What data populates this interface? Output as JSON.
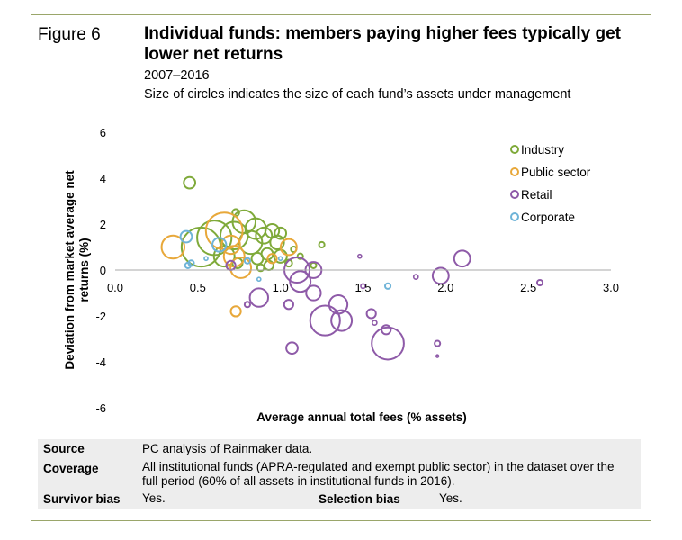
{
  "figure": {
    "label": "Figure 6",
    "title": "Individual funds: members paying higher fees typically get lower net returns",
    "period": "2007–2016",
    "subtitle": "Size of circles indicates the size of each fund’s assets under management"
  },
  "notes": {
    "source_label": "Source",
    "source_text": "PC analysis of Rainmaker data.",
    "coverage_label": "Coverage",
    "coverage_text": "All institutional funds (APRA-regulated and exempt public sector) in the dataset over the full period (60% of all assets in institutional funds in 2016).",
    "survivor_label": "Survivor bias",
    "survivor_value": "Yes.",
    "selection_label": "Selection bias",
    "selection_value": "Yes."
  },
  "chart_data": {
    "type": "scatter",
    "title": "Individual funds: members paying higher fees typically get lower net returns",
    "xlabel": "Average annual total fees (% assets)",
    "ylabel": "Deviation from market average net returns (%)",
    "xlim": [
      0,
      3
    ],
    "ylim": [
      -6,
      6
    ],
    "x_ticks": [
      "0.0",
      "0.5",
      "1.0",
      "1.5",
      "2.0",
      "2.5",
      "3.0"
    ],
    "y_ticks": [
      "6",
      "4",
      "2",
      "0",
      "-2",
      "-4",
      "-6"
    ],
    "legend_position": "top-right",
    "size_note": "circle radius in chart y-units, proportional to assets under management",
    "series": [
      {
        "name": "Industry",
        "color": "#7faa3a",
        "points": [
          {
            "x": 0.45,
            "y": 3.8,
            "s": 0.25
          },
          {
            "x": 0.52,
            "y": 1.0,
            "s": 0.85
          },
          {
            "x": 0.6,
            "y": 1.4,
            "s": 0.75
          },
          {
            "x": 0.72,
            "y": 1.5,
            "s": 0.6
          },
          {
            "x": 0.78,
            "y": 2.1,
            "s": 0.5
          },
          {
            "x": 0.82,
            "y": 1.2,
            "s": 0.5
          },
          {
            "x": 0.85,
            "y": 1.8,
            "s": 0.45
          },
          {
            "x": 0.66,
            "y": 0.6,
            "s": 0.45
          },
          {
            "x": 0.9,
            "y": 1.5,
            "s": 0.35
          },
          {
            "x": 0.95,
            "y": 1.7,
            "s": 0.3
          },
          {
            "x": 0.98,
            "y": 1.2,
            "s": 0.3
          },
          {
            "x": 1.0,
            "y": 0.6,
            "s": 0.28
          },
          {
            "x": 0.92,
            "y": 0.7,
            "s": 0.25
          },
          {
            "x": 0.86,
            "y": 0.5,
            "s": 0.25
          },
          {
            "x": 0.74,
            "y": 0.3,
            "s": 0.22
          },
          {
            "x": 0.93,
            "y": 0.2,
            "s": 0.2
          },
          {
            "x": 0.73,
            "y": 2.5,
            "s": 0.15
          },
          {
            "x": 1.05,
            "y": 0.3,
            "s": 0.15
          },
          {
            "x": 1.12,
            "y": 0.6,
            "s": 0.12
          },
          {
            "x": 1.2,
            "y": 0.2,
            "s": 0.12
          },
          {
            "x": 1.25,
            "y": 1.1,
            "s": 0.12
          },
          {
            "x": 0.88,
            "y": 0.1,
            "s": 0.15
          },
          {
            "x": 1.08,
            "y": 0.9,
            "s": 0.12
          },
          {
            "x": 1.0,
            "y": 1.6,
            "s": 0.25
          }
        ]
      },
      {
        "name": "Public sector",
        "color": "#e8a83a",
        "points": [
          {
            "x": 0.35,
            "y": 1.0,
            "s": 0.5
          },
          {
            "x": 0.66,
            "y": 1.7,
            "s": 0.8
          },
          {
            "x": 0.72,
            "y": 0.6,
            "s": 0.45
          },
          {
            "x": 0.76,
            "y": 0.1,
            "s": 0.45
          },
          {
            "x": 0.7,
            "y": 1.1,
            "s": 0.4
          },
          {
            "x": 1.05,
            "y": 1.0,
            "s": 0.35
          },
          {
            "x": 0.73,
            "y": -1.8,
            "s": 0.22
          },
          {
            "x": 0.95,
            "y": 0.5,
            "s": 0.2
          }
        ]
      },
      {
        "name": "Retail",
        "color": "#8e5aa8",
        "points": [
          {
            "x": 1.1,
            "y": 0.0,
            "s": 0.55
          },
          {
            "x": 1.12,
            "y": -0.5,
            "s": 0.45
          },
          {
            "x": 1.2,
            "y": 0.0,
            "s": 0.35
          },
          {
            "x": 1.2,
            "y": -1.0,
            "s": 0.32
          },
          {
            "x": 1.27,
            "y": -2.2,
            "s": 0.65
          },
          {
            "x": 1.37,
            "y": -2.2,
            "s": 0.45
          },
          {
            "x": 1.35,
            "y": -1.5,
            "s": 0.4
          },
          {
            "x": 1.65,
            "y": -3.2,
            "s": 0.7
          },
          {
            "x": 2.1,
            "y": 0.5,
            "s": 0.35
          },
          {
            "x": 1.97,
            "y": -0.25,
            "s": 0.35
          },
          {
            "x": 0.87,
            "y": -1.2,
            "s": 0.4
          },
          {
            "x": 0.7,
            "y": 0.2,
            "s": 0.2
          },
          {
            "x": 1.07,
            "y": -3.4,
            "s": 0.25
          },
          {
            "x": 1.05,
            "y": -1.5,
            "s": 0.2
          },
          {
            "x": 1.55,
            "y": -1.9,
            "s": 0.2
          },
          {
            "x": 1.64,
            "y": -2.6,
            "s": 0.2
          },
          {
            "x": 1.57,
            "y": -2.3,
            "s": 0.1
          },
          {
            "x": 1.48,
            "y": 0.6,
            "s": 0.08
          },
          {
            "x": 1.82,
            "y": -0.3,
            "s": 0.1
          },
          {
            "x": 1.95,
            "y": -3.2,
            "s": 0.12
          },
          {
            "x": 2.57,
            "y": -0.55,
            "s": 0.12
          },
          {
            "x": 0.8,
            "y": -1.5,
            "s": 0.12
          },
          {
            "x": 1.95,
            "y": -3.75,
            "s": 0.05
          },
          {
            "x": 1.5,
            "y": -0.7,
            "s": 0.1
          }
        ]
      },
      {
        "name": "Corporate",
        "color": "#6fb4d8",
        "points": [
          {
            "x": 0.43,
            "y": 1.45,
            "s": 0.25
          },
          {
            "x": 0.63,
            "y": 1.1,
            "s": 0.3
          },
          {
            "x": 0.46,
            "y": 0.3,
            "s": 0.12
          },
          {
            "x": 0.44,
            "y": 0.2,
            "s": 0.12
          },
          {
            "x": 0.8,
            "y": 0.4,
            "s": 0.12
          },
          {
            "x": 0.87,
            "y": -0.4,
            "s": 0.08
          },
          {
            "x": 1.65,
            "y": -0.7,
            "s": 0.12
          },
          {
            "x": 1.0,
            "y": 0.5,
            "s": 0.08
          },
          {
            "x": 0.55,
            "y": 0.5,
            "s": 0.08
          }
        ]
      }
    ]
  }
}
